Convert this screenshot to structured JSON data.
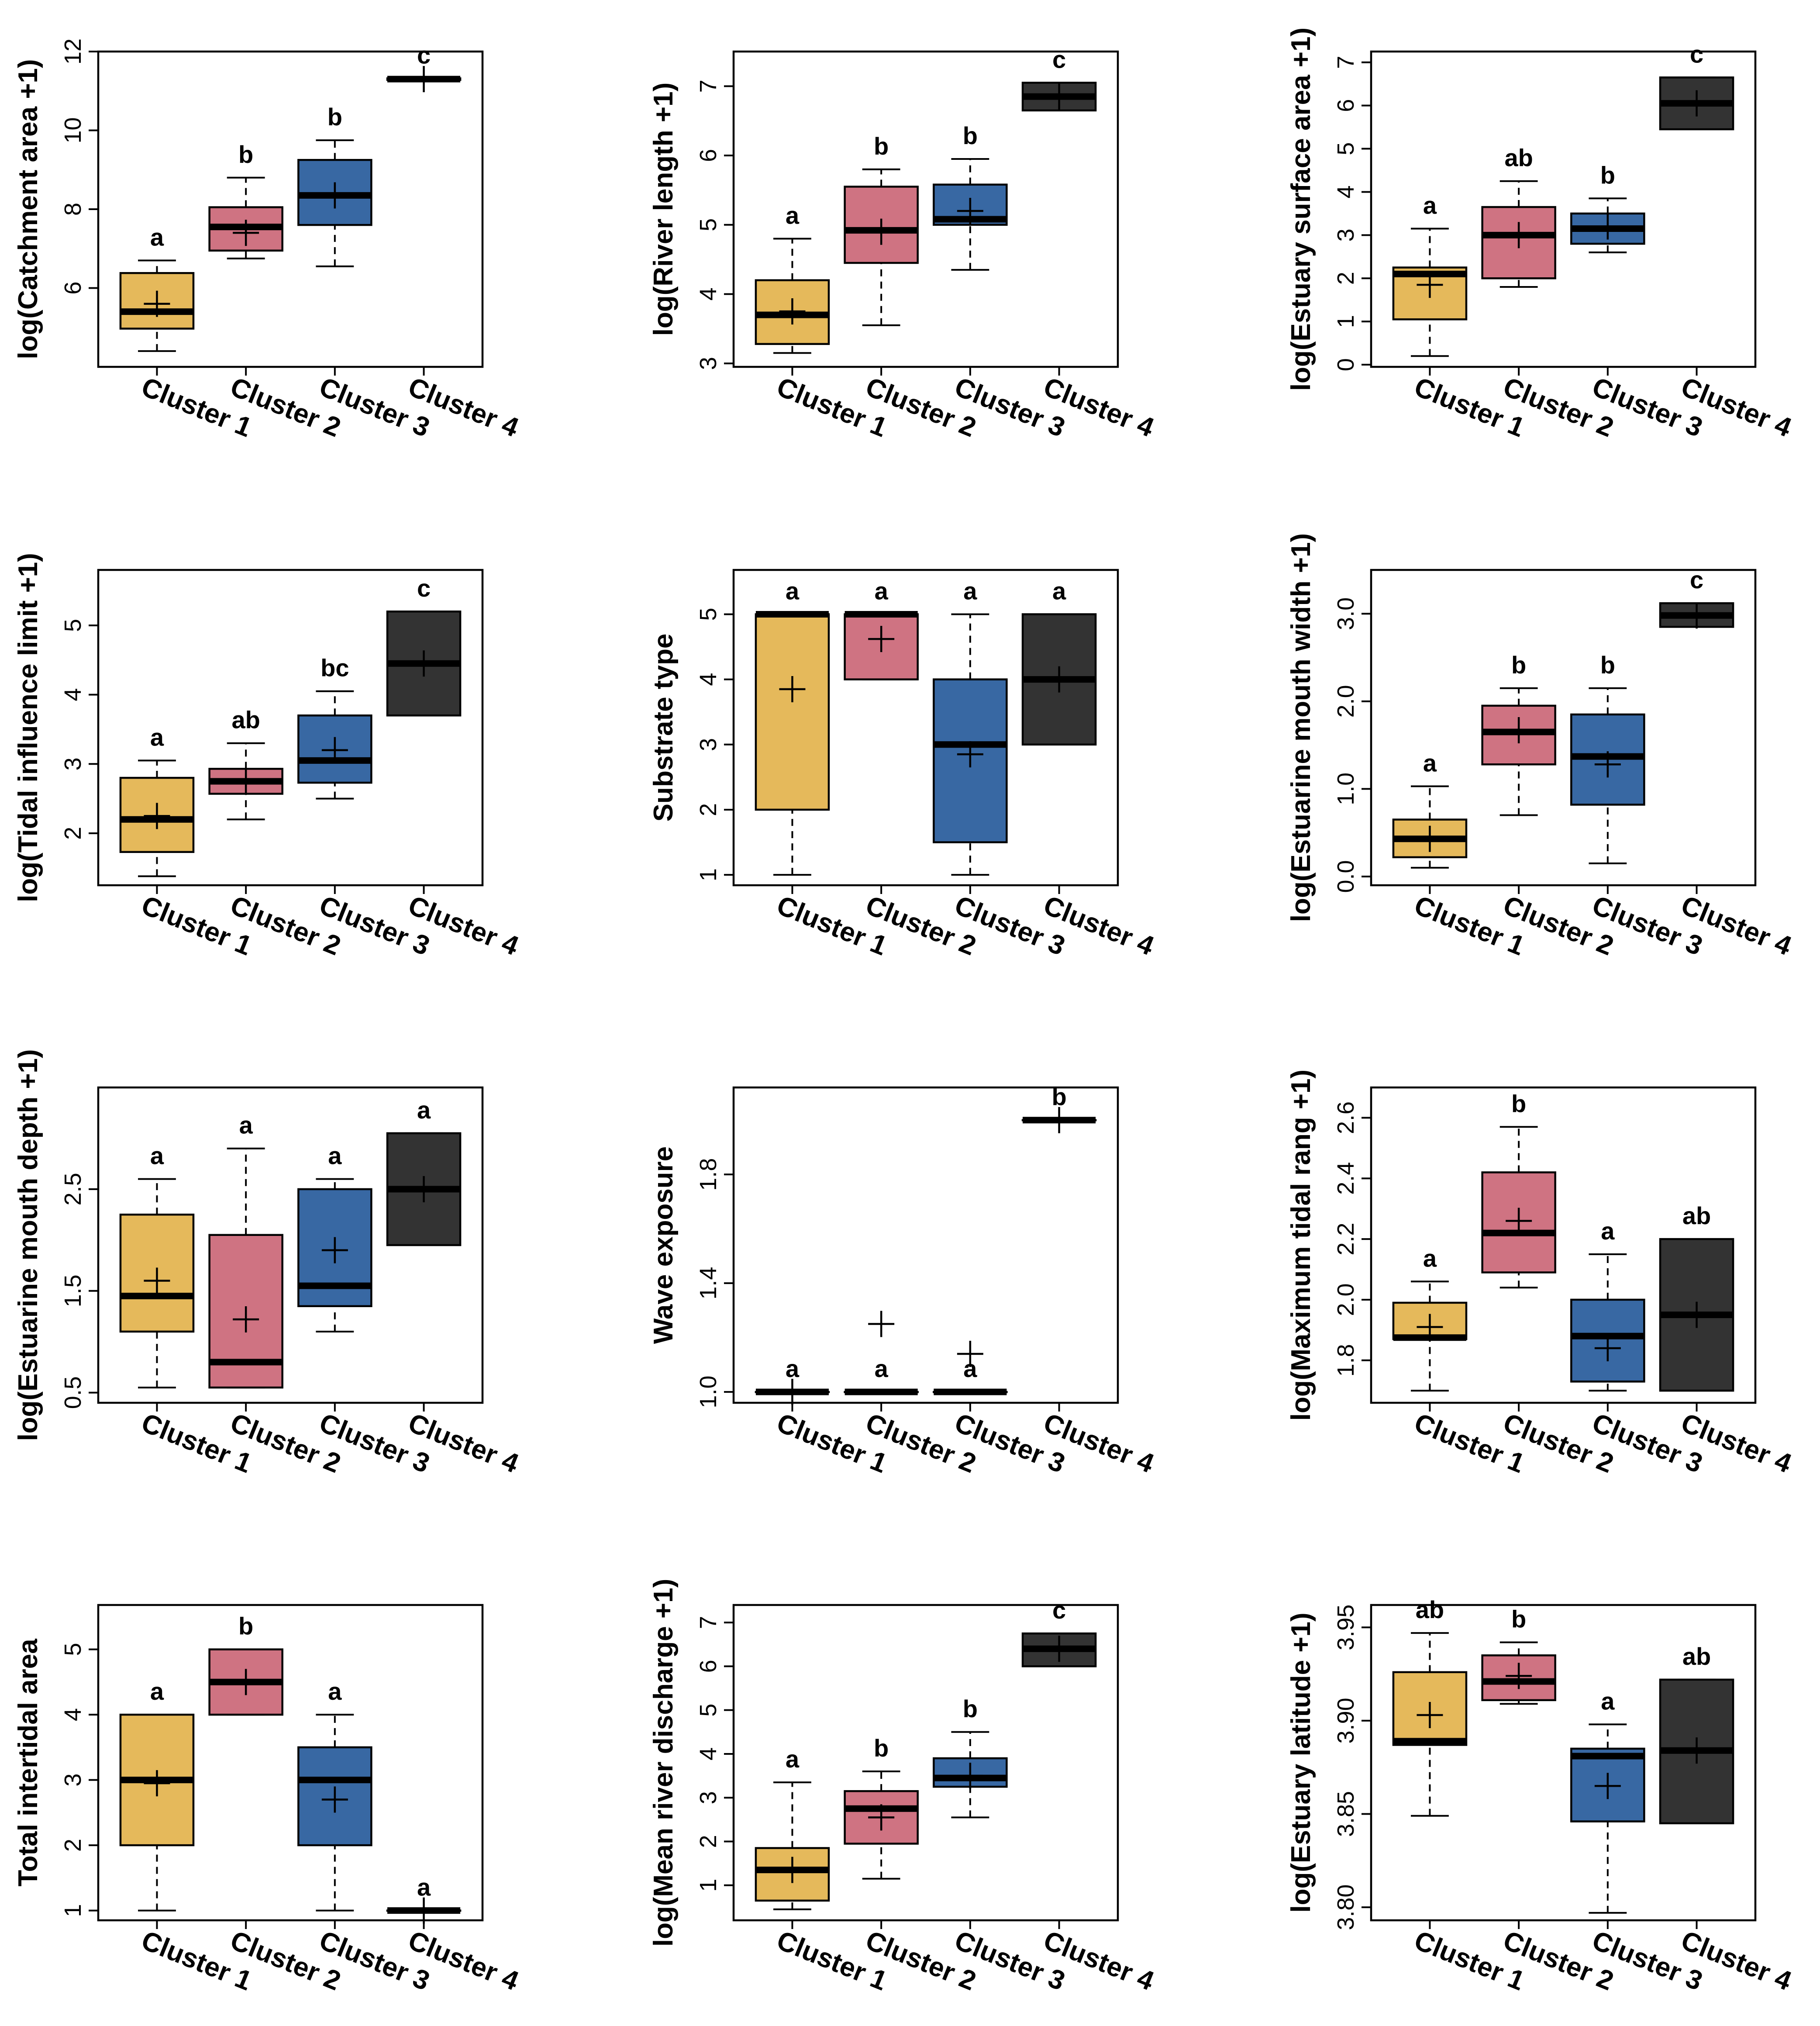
{
  "categories": [
    "Cluster 1",
    "Cluster 2",
    "Cluster 3",
    "Cluster 4"
  ],
  "colors": {
    "Cluster 1": "#e5b95b",
    "Cluster 2": "#cf7382",
    "Cluster 3": "#3868a3",
    "Cluster 4": "#333333"
  },
  "chart_data": [
    {
      "type": "box",
      "ylabel": "log(Catchment area +1)",
      "ylim": [
        4,
        12
      ],
      "yticks": [
        6,
        8,
        10,
        12
      ],
      "ytick_labels": [
        "6",
        "8",
        "10",
        "12"
      ],
      "boxes": [
        {
          "category": "Cluster 1",
          "whisker_low": 4.4,
          "q1": 4.97,
          "median": 5.4,
          "q3": 6.38,
          "whisker_high": 6.7,
          "mean": 5.6,
          "letter": "a"
        },
        {
          "category": "Cluster 2",
          "whisker_low": 6.75,
          "q1": 6.95,
          "median": 7.55,
          "q3": 8.05,
          "whisker_high": 8.8,
          "mean": 7.4,
          "letter": "b"
        },
        {
          "category": "Cluster 3",
          "whisker_low": 6.55,
          "q1": 7.6,
          "median": 8.35,
          "q3": 9.25,
          "whisker_high": 9.75,
          "mean": 8.35,
          "letter": "b"
        },
        {
          "category": "Cluster 4",
          "whisker_low": 11.28,
          "q1": 11.28,
          "median": 11.3,
          "q3": 11.32,
          "whisker_high": 11.32,
          "mean": 11.3,
          "letter": "c"
        }
      ]
    },
    {
      "type": "box",
      "ylabel": "log(River length +1)",
      "ylim": [
        2.95,
        7.5
      ],
      "yticks": [
        3,
        4,
        5,
        6,
        7
      ],
      "ytick_labels": [
        "3",
        "4",
        "5",
        "6",
        "7"
      ],
      "boxes": [
        {
          "category": "Cluster 1",
          "whisker_low": 3.15,
          "q1": 3.28,
          "median": 3.7,
          "q3": 4.2,
          "whisker_high": 4.8,
          "mean": 3.75,
          "letter": "a"
        },
        {
          "category": "Cluster 2",
          "whisker_low": 3.55,
          "q1": 4.45,
          "median": 4.92,
          "q3": 5.55,
          "whisker_high": 5.8,
          "mean": 4.9,
          "letter": "b"
        },
        {
          "category": "Cluster 3",
          "whisker_low": 4.35,
          "q1": 5.0,
          "median": 5.08,
          "q3": 5.58,
          "whisker_high": 5.95,
          "mean": 5.2,
          "letter": "b"
        },
        {
          "category": "Cluster 4",
          "whisker_low": 6.65,
          "q1": 6.65,
          "median": 6.85,
          "q3": 7.05,
          "whisker_high": 7.05,
          "mean": 6.85,
          "letter": "c"
        }
      ]
    },
    {
      "type": "box",
      "ylabel": "log(Estuary surface area +1)",
      "ylim": [
        -0.05,
        7.25
      ],
      "yticks": [
        0,
        1,
        2,
        3,
        4,
        5,
        6,
        7
      ],
      "ytick_labels": [
        "0",
        "1",
        "2",
        "3",
        "4",
        "5",
        "6",
        "7"
      ],
      "boxes": [
        {
          "category": "Cluster 1",
          "whisker_low": 0.2,
          "q1": 1.05,
          "median": 2.1,
          "q3": 2.25,
          "whisker_high": 3.15,
          "mean": 1.85,
          "letter": "a"
        },
        {
          "category": "Cluster 2",
          "whisker_low": 1.8,
          "q1": 2.0,
          "median": 3.0,
          "q3": 3.65,
          "whisker_high": 4.25,
          "mean": 3.0,
          "letter": "ab"
        },
        {
          "category": "Cluster 3",
          "whisker_low": 2.6,
          "q1": 2.8,
          "median": 3.15,
          "q3": 3.5,
          "whisker_high": 3.85,
          "mean": 3.2,
          "letter": "b"
        },
        {
          "category": "Cluster 4",
          "whisker_low": 5.45,
          "q1": 5.45,
          "median": 6.05,
          "q3": 6.65,
          "whisker_high": 6.65,
          "mean": 6.05,
          "letter": "c"
        }
      ]
    },
    {
      "type": "box",
      "ylabel": "log(Tidal influence limit +1)",
      "ylim": [
        1.25,
        5.8
      ],
      "yticks": [
        2,
        3,
        4,
        5
      ],
      "ytick_labels": [
        "2",
        "3",
        "4",
        "5"
      ],
      "boxes": [
        {
          "category": "Cluster 1",
          "whisker_low": 1.38,
          "q1": 1.73,
          "median": 2.2,
          "q3": 2.8,
          "whisker_high": 3.05,
          "mean": 2.25,
          "letter": "a"
        },
        {
          "category": "Cluster 2",
          "whisker_low": 2.2,
          "q1": 2.57,
          "median": 2.75,
          "q3": 2.93,
          "whisker_high": 3.3,
          "mean": 2.75,
          "letter": "ab"
        },
        {
          "category": "Cluster 3",
          "whisker_low": 2.5,
          "q1": 2.73,
          "median": 3.05,
          "q3": 3.7,
          "whisker_high": 4.05,
          "mean": 3.2,
          "letter": "bc"
        },
        {
          "category": "Cluster 4",
          "whisker_low": 3.7,
          "q1": 3.7,
          "median": 4.45,
          "q3": 5.2,
          "whisker_high": 5.2,
          "mean": 4.45,
          "letter": "c"
        }
      ]
    },
    {
      "type": "box",
      "ylabel": "Substrate type",
      "ylim": [
        0.84,
        5.68
      ],
      "yticks": [
        1,
        2,
        3,
        4,
        5
      ],
      "ytick_labels": [
        "1",
        "2",
        "3",
        "4",
        "5"
      ],
      "boxes": [
        {
          "category": "Cluster 1",
          "whisker_low": 1.0,
          "q1": 2.0,
          "median": 5.0,
          "q3": 5.0,
          "whisker_high": 5.0,
          "mean": 3.85,
          "letter": "a"
        },
        {
          "category": "Cluster 2",
          "whisker_low": 4.0,
          "q1": 4.0,
          "median": 5.0,
          "q3": 5.0,
          "whisker_high": 5.0,
          "mean": 4.62,
          "letter": "a"
        },
        {
          "category": "Cluster 3",
          "whisker_low": 1.0,
          "q1": 1.5,
          "median": 3.0,
          "q3": 4.0,
          "whisker_high": 5.0,
          "mean": 2.85,
          "letter": "a"
        },
        {
          "category": "Cluster 4",
          "whisker_low": 3.0,
          "q1": 3.0,
          "median": 4.0,
          "q3": 5.0,
          "whisker_high": 5.0,
          "mean": 4.0,
          "letter": "a"
        }
      ]
    },
    {
      "type": "box",
      "ylabel": "log(Estuarine mouth width +1)",
      "ylim": [
        -0.1,
        3.5
      ],
      "yticks": [
        0.0,
        1.0,
        2.0,
        3.0
      ],
      "ytick_labels": [
        "0.0",
        "1.0",
        "2.0",
        "3.0"
      ],
      "boxes": [
        {
          "category": "Cluster 1",
          "whisker_low": 0.1,
          "q1": 0.22,
          "median": 0.43,
          "q3": 0.65,
          "whisker_high": 1.03,
          "mean": 0.43,
          "letter": "a"
        },
        {
          "category": "Cluster 2",
          "whisker_low": 0.7,
          "q1": 1.28,
          "median": 1.65,
          "q3": 1.95,
          "whisker_high": 2.15,
          "mean": 1.67,
          "letter": "b"
        },
        {
          "category": "Cluster 3",
          "whisker_low": 0.15,
          "q1": 0.82,
          "median": 1.37,
          "q3": 1.85,
          "whisker_high": 2.15,
          "mean": 1.28,
          "letter": "b"
        },
        {
          "category": "Cluster 4",
          "whisker_low": 2.85,
          "q1": 2.85,
          "median": 2.98,
          "q3": 3.12,
          "whisker_high": 3.12,
          "mean": 2.98,
          "letter": "c"
        }
      ]
    },
    {
      "type": "box",
      "ylabel": "log(Estuarine mouth depth +1)",
      "ylim": [
        0.4,
        3.5
      ],
      "yticks": [
        0.5,
        1.5,
        2.5
      ],
      "ytick_labels": [
        "0.5",
        "1.5",
        "2.5"
      ],
      "boxes": [
        {
          "category": "Cluster 1",
          "whisker_low": 0.55,
          "q1": 1.1,
          "median": 1.45,
          "q3": 2.25,
          "whisker_high": 2.6,
          "mean": 1.6,
          "letter": "a"
        },
        {
          "category": "Cluster 2",
          "whisker_low": 0.55,
          "q1": 0.55,
          "median": 0.8,
          "q3": 2.05,
          "whisker_high": 2.9,
          "mean": 1.22,
          "letter": "a"
        },
        {
          "category": "Cluster 3",
          "whisker_low": 1.1,
          "q1": 1.35,
          "median": 1.55,
          "q3": 2.5,
          "whisker_high": 2.6,
          "mean": 1.9,
          "letter": "a"
        },
        {
          "category": "Cluster 4",
          "whisker_low": 1.95,
          "q1": 1.95,
          "median": 2.5,
          "q3": 3.05,
          "whisker_high": 3.05,
          "mean": 2.5,
          "letter": "a"
        }
      ]
    },
    {
      "type": "box",
      "ylabel": "Wave exposure",
      "ylim": [
        0.96,
        2.12
      ],
      "yticks": [
        1.0,
        1.4,
        1.8
      ],
      "ytick_labels": [
        "1.0",
        "1.4",
        "1.8"
      ],
      "boxes": [
        {
          "category": "Cluster 1",
          "whisker_low": 1.0,
          "q1": 1.0,
          "median": 1.0,
          "q3": 1.0,
          "whisker_high": 1.0,
          "mean": 1.0,
          "letter": "a"
        },
        {
          "category": "Cluster 2",
          "whisker_low": 1.0,
          "q1": 1.0,
          "median": 1.0,
          "q3": 1.0,
          "whisker_high": 1.0,
          "mean": 1.25,
          "letter": "a"
        },
        {
          "category": "Cluster 3",
          "whisker_low": 1.0,
          "q1": 1.0,
          "median": 1.0,
          "q3": 1.0,
          "whisker_high": 1.0,
          "mean": 1.14,
          "letter": "a"
        },
        {
          "category": "Cluster 4",
          "whisker_low": 2.0,
          "q1": 2.0,
          "median": 2.0,
          "q3": 2.0,
          "whisker_high": 2.0,
          "mean": 2.0,
          "letter": "b"
        }
      ]
    },
    {
      "type": "box",
      "ylabel": "log(Maximum tidal rang +1)",
      "ylim": [
        1.66,
        2.7
      ],
      "yticks": [
        1.8,
        2.0,
        2.2,
        2.4,
        2.6
      ],
      "ytick_labels": [
        "1.8",
        "2.0",
        "2.2",
        "2.4",
        "2.6"
      ],
      "boxes": [
        {
          "category": "Cluster 1",
          "whisker_low": 1.7,
          "q1": 1.87,
          "median": 1.875,
          "q3": 1.99,
          "whisker_high": 2.06,
          "mean": 1.91,
          "letter": "a"
        },
        {
          "category": "Cluster 2",
          "whisker_low": 2.04,
          "q1": 2.09,
          "median": 2.22,
          "q3": 2.42,
          "whisker_high": 2.57,
          "mean": 2.26,
          "letter": "b"
        },
        {
          "category": "Cluster 3",
          "whisker_low": 1.7,
          "q1": 1.73,
          "median": 1.88,
          "q3": 2.0,
          "whisker_high": 2.15,
          "mean": 1.84,
          "letter": "a"
        },
        {
          "category": "Cluster 4",
          "whisker_low": 1.7,
          "q1": 1.7,
          "median": 1.95,
          "q3": 2.2,
          "whisker_high": 2.2,
          "mean": 1.95,
          "letter": "ab"
        }
      ]
    },
    {
      "type": "box",
      "ylabel": "Total intertidal area",
      "ylim": [
        0.85,
        5.68
      ],
      "yticks": [
        1,
        2,
        3,
        4,
        5
      ],
      "ytick_labels": [
        "1",
        "2",
        "3",
        "4",
        "5"
      ],
      "boxes": [
        {
          "category": "Cluster 1",
          "whisker_low": 1.0,
          "q1": 2.0,
          "median": 3.0,
          "q3": 4.0,
          "whisker_high": 4.0,
          "mean": 2.95,
          "letter": "a"
        },
        {
          "category": "Cluster 2",
          "whisker_low": 4.0,
          "q1": 4.0,
          "median": 4.5,
          "q3": 5.0,
          "whisker_high": 5.0,
          "mean": 4.5,
          "letter": "b"
        },
        {
          "category": "Cluster 3",
          "whisker_low": 1.0,
          "q1": 2.0,
          "median": 3.0,
          "q3": 3.5,
          "whisker_high": 4.0,
          "mean": 2.7,
          "letter": "a"
        },
        {
          "category": "Cluster 4",
          "whisker_low": 1.0,
          "q1": 1.0,
          "median": 1.0,
          "q3": 1.0,
          "whisker_high": 1.0,
          "mean": 1.0,
          "letter": "a"
        }
      ]
    },
    {
      "type": "box",
      "ylabel": "log(Mean river discharge +1)",
      "ylim": [
        0.2,
        7.4
      ],
      "yticks": [
        1,
        2,
        3,
        4,
        5,
        6,
        7
      ],
      "ytick_labels": [
        "1",
        "2",
        "3",
        "4",
        "5",
        "6",
        "7"
      ],
      "boxes": [
        {
          "category": "Cluster 1",
          "whisker_low": 0.45,
          "q1": 0.65,
          "median": 1.35,
          "q3": 1.85,
          "whisker_high": 3.35,
          "mean": 1.35,
          "letter": "a"
        },
        {
          "category": "Cluster 2",
          "whisker_low": 1.15,
          "q1": 1.95,
          "median": 2.75,
          "q3": 3.15,
          "whisker_high": 3.6,
          "mean": 2.55,
          "letter": "b"
        },
        {
          "category": "Cluster 3",
          "whisker_low": 2.55,
          "q1": 3.25,
          "median": 3.45,
          "q3": 3.9,
          "whisker_high": 4.5,
          "mean": 3.5,
          "letter": "b"
        },
        {
          "category": "Cluster 4",
          "whisker_low": 6.0,
          "q1": 6.0,
          "median": 6.4,
          "q3": 6.75,
          "whisker_high": 6.75,
          "mean": 6.4,
          "letter": "c"
        }
      ]
    },
    {
      "type": "box",
      "ylabel": "log(Estuary latitude +1)",
      "ylim": [
        3.793,
        3.962
      ],
      "yticks": [
        3.8,
        3.85,
        3.9,
        3.95
      ],
      "ytick_labels": [
        "3.80",
        "3.85",
        "3.90",
        "3.95"
      ],
      "boxes": [
        {
          "category": "Cluster 1",
          "whisker_low": 3.849,
          "q1": 3.887,
          "median": 3.889,
          "q3": 3.926,
          "whisker_high": 3.947,
          "mean": 3.903,
          "letter": "ab"
        },
        {
          "category": "Cluster 2",
          "whisker_low": 3.909,
          "q1": 3.911,
          "median": 3.921,
          "q3": 3.935,
          "whisker_high": 3.942,
          "mean": 3.924,
          "letter": "b"
        },
        {
          "category": "Cluster 3",
          "whisker_low": 3.797,
          "q1": 3.846,
          "median": 3.881,
          "q3": 3.885,
          "whisker_high": 3.898,
          "mean": 3.865,
          "letter": "a"
        },
        {
          "category": "Cluster 4",
          "whisker_low": 3.845,
          "q1": 3.845,
          "median": 3.884,
          "q3": 3.922,
          "whisker_high": 3.922,
          "mean": 3.884,
          "letter": "ab"
        }
      ]
    }
  ]
}
